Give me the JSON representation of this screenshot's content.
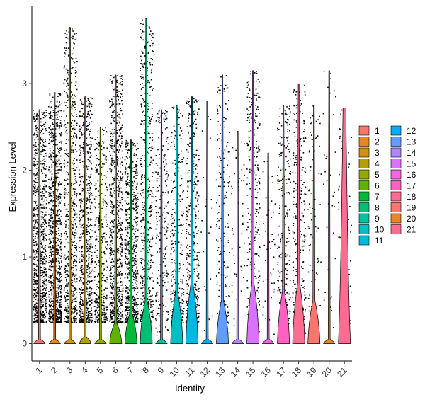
{
  "chart_data": {
    "type": "violin",
    "title": "",
    "xlabel": "Identity",
    "ylabel": "Expression Level",
    "ylim": [
      -0.2,
      3.9
    ],
    "yticks": [
      0,
      1,
      2,
      3
    ],
    "categories": [
      "1",
      "2",
      "3",
      "4",
      "5",
      "6",
      "7",
      "8",
      "9",
      "10",
      "11",
      "12",
      "13",
      "14",
      "15",
      "16",
      "17",
      "18",
      "19",
      "20",
      "21"
    ],
    "colors": [
      "#F8766D",
      "#E88526",
      "#D39200",
      "#B79F00",
      "#93AA00",
      "#5EB300",
      "#00BA38",
      "#00BF74",
      "#00C19F",
      "#00BFC4",
      "#00B9E3",
      "#00ADFA",
      "#619CFF",
      "#AE87FF",
      "#DB72FB",
      "#F564E3",
      "#FF61C3",
      "#FF6C91",
      "#F8766D",
      "#E88526",
      "#FF6C91"
    ],
    "series": [
      {
        "name": "1",
        "max": 2.7,
        "violin_peak": 0.02,
        "density": 0.95
      },
      {
        "name": "2",
        "max": 2.9,
        "violin_peak": 0.02,
        "density": 1.0
      },
      {
        "name": "3",
        "max": 3.65,
        "violin_peak": 0.02,
        "density": 0.75
      },
      {
        "name": "4",
        "max": 2.85,
        "violin_peak": 0.04,
        "density": 0.8
      },
      {
        "name": "5",
        "max": 2.5,
        "violin_peak": 0.02,
        "density": 0.45
      },
      {
        "name": "6",
        "max": 3.1,
        "violin_peak": 0.12,
        "density": 0.85
      },
      {
        "name": "7",
        "max": 2.35,
        "violin_peak": 0.18,
        "density": 0.75
      },
      {
        "name": "8",
        "max": 3.75,
        "violin_peak": 0.25,
        "density": 0.55
      },
      {
        "name": "9",
        "max": 2.7,
        "violin_peak": 0.02,
        "density": 0.25
      },
      {
        "name": "10",
        "max": 2.75,
        "violin_peak": 0.3,
        "density": 0.35
      },
      {
        "name": "11",
        "max": 2.85,
        "violin_peak": 0.35,
        "density": 0.45
      },
      {
        "name": "12",
        "max": 2.8,
        "violin_peak": 0.02,
        "density": 0.03
      },
      {
        "name": "13",
        "max": 3.1,
        "violin_peak": 0.25,
        "density": 0.2
      },
      {
        "name": "14",
        "max": 2.45,
        "violin_peak": 0.02,
        "density": 0.06
      },
      {
        "name": "15",
        "max": 3.15,
        "violin_peak": 0.35,
        "density": 0.3
      },
      {
        "name": "16",
        "max": 2.2,
        "violin_peak": 0.02,
        "density": 0.05
      },
      {
        "name": "17",
        "max": 2.75,
        "violin_peak": 0.3,
        "density": 0.25
      },
      {
        "name": "18",
        "max": 3.0,
        "violin_peak": 0.35,
        "density": 0.3
      },
      {
        "name": "19",
        "max": 2.75,
        "violin_peak": 0.25,
        "density": 0.1
      },
      {
        "name": "20",
        "max": 3.15,
        "violin_peak": 0.02,
        "density": 0.04
      },
      {
        "name": "21",
        "max": 2.72,
        "violin_peak": 2.72,
        "density": 0.08
      }
    ],
    "legend_position": "right",
    "grid": false
  }
}
